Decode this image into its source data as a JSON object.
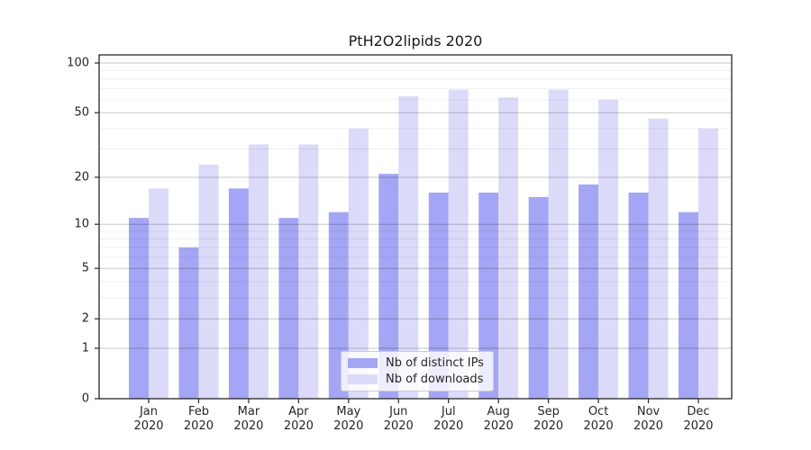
{
  "chart_data": {
    "type": "bar",
    "title": "PtH2O2lipids 2020",
    "categories": [
      "Jan",
      "Feb",
      "Mar",
      "Apr",
      "May",
      "Jun",
      "Jul",
      "Aug",
      "Sep",
      "Oct",
      "Nov",
      "Dec"
    ],
    "category_second_line": "2020",
    "series": [
      {
        "name": "Nb of distinct IPs",
        "color": "#a5a5f5",
        "values": [
          11,
          7,
          17,
          11,
          12,
          21,
          16,
          16,
          15,
          18,
          16,
          12
        ]
      },
      {
        "name": "Nb of downloads",
        "color": "#dbdbf9",
        "values": [
          17,
          24,
          32,
          32,
          40,
          63,
          69,
          62,
          69,
          60,
          46,
          40
        ]
      }
    ],
    "xlabel": "",
    "ylabel": "",
    "yscale": "symlog",
    "ylim": [
      0,
      100
    ],
    "yticks_major": [
      100,
      50,
      20,
      10,
      5,
      2,
      1,
      0
    ],
    "yticks_minor": [
      3,
      4,
      6,
      7,
      8,
      9,
      30,
      40,
      60,
      70,
      80,
      90
    ],
    "grid": "horizontal",
    "legend_position": "inside-bottom-center",
    "colors": {
      "spine": "#262626",
      "tick_label": "#262626",
      "grid_major": "rgba(0,0,0,0.22)",
      "grid_minor": "rgba(0,0,0,0.075)",
      "background": "#ffffff"
    }
  }
}
